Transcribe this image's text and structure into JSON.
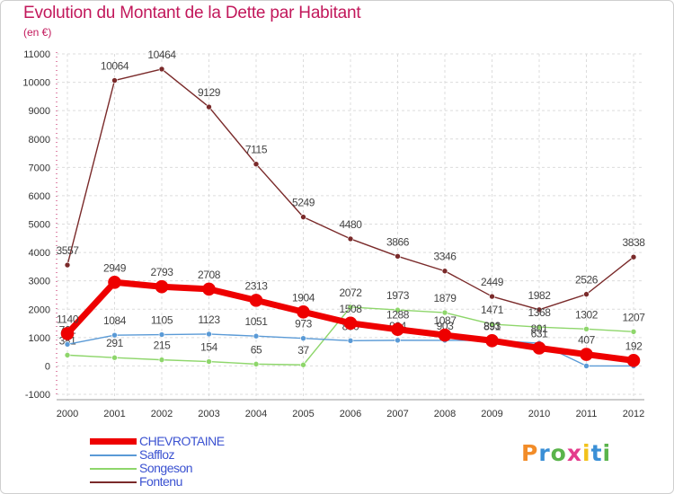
{
  "title": "Evolution du Montant de la Dette par Habitant",
  "unit_label": "(en €)",
  "logo_text": "Proxiti",
  "logo_colors": [
    "#f28c28",
    "#3a8fd6",
    "#5ab44b",
    "#e43c8c",
    "#f2c21b",
    "#3a8fd6",
    "#5ab44b"
  ],
  "chart_data": {
    "type": "line",
    "x": [
      "2000",
      "2001",
      "2002",
      "2003",
      "2004",
      "2005",
      "2006",
      "2007",
      "2008",
      "2009",
      "2010",
      "2011",
      "2012"
    ],
    "ylim": [
      -1000,
      11000
    ],
    "yticks": [
      -1000,
      0,
      1000,
      2000,
      3000,
      4000,
      5000,
      6000,
      7000,
      8000,
      9000,
      10000,
      11000
    ],
    "grid": true,
    "legend_position": "bottom-left",
    "series": [
      {
        "name": "Fontenu",
        "color": "#7a2a2a",
        "values": [
          3557,
          10064,
          10464,
          9129,
          7115,
          5249,
          4480,
          3866,
          3346,
          2449,
          1982,
          2526,
          3838
        ],
        "labels": [
          "3557",
          "10064",
          "10464",
          "9129",
          "7115",
          "5249",
          "4480",
          "3866",
          "3346",
          "2449",
          "1982",
          "2526",
          "3838"
        ]
      },
      {
        "name": "Songeson",
        "color": "#8ed66b",
        "values": [
          381,
          291,
          215,
          154,
          65,
          37,
          2072,
          1973,
          1879,
          1471,
          1368,
          1302,
          1207
        ],
        "labels": [
          "381",
          "291",
          "215",
          "154",
          "65",
          "37",
          "2072",
          "1973",
          "1879",
          "1471",
          "1368",
          "1302",
          "1207"
        ]
      },
      {
        "name": "Saffloz",
        "color": "#5a9ad6",
        "values": [
          762,
          1084,
          1105,
          1123,
          1051,
          973,
          890,
          904,
          903,
          893,
          801,
          0,
          0
        ],
        "labels": [
          "762",
          "1084",
          "1105",
          "1123",
          "1051",
          "973",
          "890",
          "904",
          "903",
          "893",
          "801",
          "",
          ""
        ]
      },
      {
        "name": "CHEVROTAINE",
        "color": "#ee0000",
        "values": [
          1140,
          2949,
          2793,
          2708,
          2313,
          1904,
          1508,
          1288,
          1087,
          891,
          631,
          407,
          192
        ],
        "labels": [
          "1140",
          "2949",
          "2793",
          "2708",
          "2313",
          "1904",
          "1508",
          "1288",
          "1087",
          "891",
          "631",
          "407",
          "192"
        ]
      }
    ],
    "legend": [
      "CHEVROTAINE",
      "Saffloz",
      "Songeson",
      "Fontenu"
    ]
  }
}
